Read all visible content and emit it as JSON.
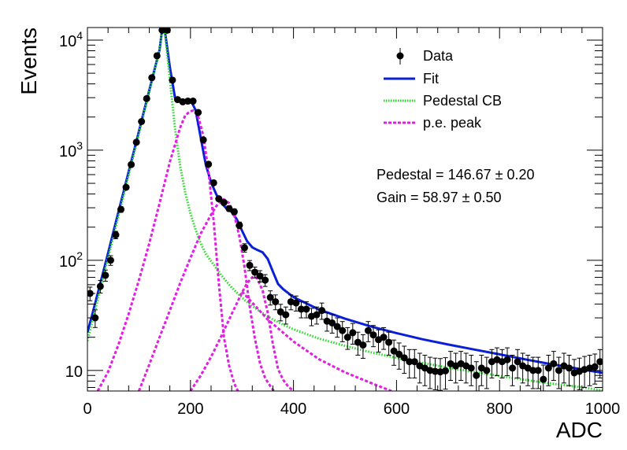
{
  "chart_data": {
    "type": "scatter",
    "xlabel": "ADC",
    "ylabel": "Events",
    "xlim": [
      0,
      1000
    ],
    "ylim": [
      6.5,
      13000
    ],
    "yscale": "log",
    "x_ticks": [
      0,
      200,
      400,
      600,
      800,
      1000
    ],
    "x_tick_labels": [
      "0",
      "200",
      "400",
      "600",
      "800",
      "1000"
    ],
    "y_ticks": [
      10,
      100,
      1000,
      10000
    ],
    "y_tick_labels": [
      {
        "base": "10",
        "exp": ""
      },
      {
        "base": "10",
        "exp": "2"
      },
      {
        "base": "10",
        "exp": "3"
      },
      {
        "base": "10",
        "exp": "4"
      }
    ],
    "legend": {
      "placement": "top-right",
      "entries": [
        {
          "label": "Data",
          "color": "#000000",
          "style": "marker"
        },
        {
          "label": "Fit",
          "color": "#0a1fd6",
          "style": "solid"
        },
        {
          "label": "Pedestal CB",
          "color": "#22dd22",
          "style": "dotted"
        },
        {
          "label": "p.e. peak",
          "color": "#e020e0",
          "style": "dashed"
        }
      ]
    },
    "annotations": [
      "Pedestal = 146.67 ± 0.20",
      "Gain = 58.97 ± 0.50"
    ],
    "series": [
      {
        "name": "Data",
        "kind": "points",
        "color": "#000000",
        "x": [
          5,
          15,
          25,
          35,
          45,
          55,
          65,
          75,
          85,
          95,
          105,
          115,
          125,
          135,
          145,
          155,
          165,
          175,
          185,
          195,
          205,
          215,
          225,
          235,
          245,
          255,
          265,
          275,
          285,
          295,
          305,
          315,
          325,
          335,
          345,
          355,
          365,
          375,
          385,
          395,
          405,
          415,
          425,
          435,
          445,
          455,
          465,
          475,
          485,
          495,
          505,
          515,
          525,
          535,
          545,
          555,
          565,
          575,
          585,
          595,
          605,
          615,
          625,
          635,
          645,
          655,
          665,
          675,
          685,
          695,
          705,
          715,
          725,
          735,
          745,
          755,
          765,
          775,
          785,
          795,
          805,
          815,
          825,
          835,
          845,
          855,
          865,
          875,
          885,
          895,
          905,
          915,
          925,
          935,
          945,
          955,
          965,
          975,
          985,
          995
        ],
        "y": [
          50,
          30,
          58,
          73,
          100,
          170,
          290,
          460,
          740,
          1180,
          1820,
          2940,
          4550,
          7200,
          12300,
          12300,
          4330,
          2880,
          2750,
          2790,
          2790,
          2200,
          1240,
          745,
          505,
          362,
          335,
          295,
          276,
          208,
          130,
          90,
          78,
          72,
          66,
          46,
          42,
          34,
          32,
          42,
          41,
          36,
          36,
          31,
          32,
          35,
          28,
          27,
          25,
          23,
          20,
          22,
          18,
          17,
          23,
          21,
          19,
          20,
          18,
          15,
          14,
          13,
          12,
          12,
          11,
          10.5,
          10,
          9.8,
          9.7,
          9.9,
          11.5,
          11,
          11.5,
          11,
          10.5,
          9,
          10.5,
          10,
          12,
          12.5,
          12,
          12.5,
          10.5,
          12,
          11,
          10.5,
          10,
          10,
          8.3,
          10.5,
          11.5,
          10,
          11,
          10.5,
          9.5,
          9.8,
          10.2,
          10.5,
          10.8,
          12
        ]
      },
      {
        "name": "Fit",
        "kind": "line",
        "color": "#0a1fd6",
        "x": [
          0,
          10,
          20,
          30,
          40,
          50,
          60,
          70,
          80,
          90,
          100,
          110,
          120,
          130,
          140,
          145,
          150,
          160,
          170,
          180,
          190,
          200,
          210,
          220,
          230,
          240,
          250,
          260,
          270,
          280,
          290,
          300,
          310,
          320,
          330,
          340,
          350,
          360,
          370,
          380,
          400,
          450,
          500,
          550,
          600,
          650,
          700,
          750,
          800,
          850,
          900,
          950,
          1000
        ],
        "y": [
          22,
          33,
          50,
          76,
          116,
          178,
          272,
          416,
          636,
          973,
          1490,
          2280,
          3490,
          5340,
          8180,
          12500,
          12500,
          5700,
          2990,
          2780,
          2850,
          2860,
          2320,
          1290,
          730,
          510,
          398,
          331,
          295,
          275,
          235,
          186,
          149,
          131,
          124,
          118,
          103,
          79,
          61,
          54.6,
          46.3,
          35.6,
          29.5,
          25.1,
          21.8,
          19.2,
          17.2,
          15.5,
          14.0,
          12.6,
          11.4,
          10.4,
          9.5
        ]
      },
      {
        "name": "Pedestal CB",
        "kind": "line",
        "color": "#22dd22",
        "x": [
          0,
          10,
          20,
          30,
          40,
          50,
          60,
          70,
          80,
          90,
          100,
          110,
          120,
          130,
          140,
          145,
          150,
          160,
          170,
          180,
          190,
          200,
          210,
          220,
          230,
          240,
          250,
          260,
          280,
          300,
          320,
          340,
          360,
          380,
          400,
          450,
          500,
          550,
          600,
          650,
          700,
          750,
          800,
          850,
          900,
          950,
          1000
        ],
        "y": [
          18.5,
          28.5,
          44,
          68,
          105,
          162,
          250,
          386,
          596,
          920,
          1420,
          2190,
          3380,
          5220,
          8060,
          12300,
          12300,
          4400,
          1570,
          720,
          408,
          267,
          190,
          142,
          114,
          98,
          85,
          73,
          56.6,
          45.8,
          38.4,
          33.0,
          29.0,
          26.0,
          23.6,
          19.4,
          16.7,
          14.6,
          13.0,
          11.7,
          10.6,
          9.7,
          8.9,
          8.2,
          7.6,
          7.1,
          6.6
        ]
      },
      {
        "name": "p.e. peak 1",
        "kind": "line",
        "color": "#e020e0",
        "x": [
          20,
          40,
          60,
          80,
          100,
          120,
          140,
          160,
          180,
          190,
          200,
          206,
          215,
          225,
          235,
          245,
          255,
          265,
          275,
          285,
          292
        ],
        "y": [
          6.5,
          9.7,
          17,
          32.5,
          66,
          142,
          330,
          780,
          1600,
          2080,
          2260,
          2290,
          2030,
          1350,
          640,
          230,
          62,
          20,
          11,
          7.6,
          6.5
        ]
      },
      {
        "name": "p.e. peak 2",
        "kind": "line",
        "color": "#e020e0",
        "x": [
          100,
          120,
          140,
          160,
          180,
          200,
          220,
          240,
          250,
          260,
          265,
          275,
          285,
          295,
          305,
          315,
          325,
          335,
          345,
          355,
          362
        ],
        "y": [
          6.5,
          11.3,
          20,
          35,
          62,
          105,
          175,
          260,
          310,
          352,
          358,
          330,
          258,
          165,
          86,
          38,
          19.5,
          11.6,
          8.5,
          7.2,
          6.5
        ]
      },
      {
        "name": "p.e. peak 3",
        "kind": "line",
        "color": "#e020e0",
        "x": [
          200,
          220,
          240,
          260,
          280,
          300,
          310,
          320,
          325,
          330,
          340,
          350,
          360,
          370,
          380,
          390,
          400
        ],
        "y": [
          6.5,
          9,
          13.3,
          20.5,
          32.5,
          51,
          62,
          70,
          71,
          68,
          53,
          33.5,
          17.4,
          10.3,
          8.2,
          7.1,
          6.5
        ]
      },
      {
        "name": "p.e. tail",
        "kind": "line",
        "color": "#e020e0",
        "x": [
          300,
          350,
          400,
          450,
          500,
          550,
          590
        ],
        "y": [
          52,
          29,
          18.3,
          12.6,
          9.6,
          7.7,
          6.5
        ]
      }
    ]
  }
}
